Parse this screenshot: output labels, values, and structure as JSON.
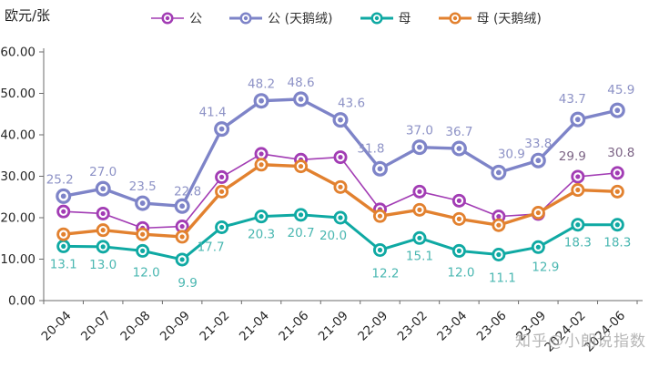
{
  "watermark": {
    "text": "知乎@小朗说指数"
  },
  "chart_data": {
    "type": "line",
    "title": "",
    "xlabel": "",
    "ylabel": "欧元/张",
    "ylim": [
      0,
      60
    ],
    "ytick_labels": [
      "60.00",
      "50.00",
      "40.00",
      "30.00",
      "20.00",
      "10.00",
      "0.00"
    ],
    "grid": false,
    "legend_position": "top",
    "categories": [
      "20-04",
      "20-07",
      "20-08",
      "20-09",
      "21-02",
      "21-04",
      "21-06",
      "21-09",
      "22-09",
      "23-02",
      "23-04",
      "23-06",
      "23-09",
      "2024-02",
      "2024-06"
    ],
    "series": [
      {
        "name": "公",
        "color": "#a23cb4",
        "label_color": "#7c6485",
        "line_width": 1.6,
        "marker_radii": [
          7.5,
          4.7,
          2.6
        ],
        "values": [
          21.5,
          21.0,
          17.5,
          17.9,
          29.8,
          35.4,
          34.0,
          34.6,
          22.0,
          26.3,
          24.1,
          20.3,
          20.9,
          29.9,
          30.8
        ],
        "label_side": "above",
        "labeled_points": [
          13,
          14
        ],
        "label_offsets": {
          "13": [
            -6,
            -4
          ],
          "14": [
            4,
            -4
          ]
        }
      },
      {
        "name": "公 (天鹅绒)",
        "color": "#7e84c8",
        "label_color": "#8d92c6",
        "line_width": 3.4,
        "marker_radii": [
          8.5,
          5.3,
          2.9
        ],
        "values": [
          25.2,
          27.0,
          23.5,
          22.8,
          41.4,
          48.2,
          48.6,
          43.6,
          31.8,
          37.0,
          36.7,
          30.9,
          33.8,
          43.7,
          45.9
        ],
        "label_side": "above",
        "labeled_points": "all",
        "label_offsets": {
          "0": [
            -4,
            0
          ],
          "3": [
            6,
            2
          ],
          "4": [
            -10,
            0
          ],
          "7": [
            12,
            0
          ],
          "8": [
            -10,
            -4
          ],
          "11": [
            14,
            -2
          ],
          "13": [
            -6,
            -4
          ],
          "14": [
            4,
            -4
          ]
        }
      },
      {
        "name": "母",
        "color": "#0fa9a3",
        "label_color": "#4ab7b1",
        "line_width": 3.0,
        "marker_radii": [
          7.5,
          4.7,
          2.6
        ],
        "values": [
          13.1,
          13.0,
          12.0,
          9.9,
          17.7,
          20.3,
          20.7,
          20.0,
          12.2,
          15.1,
          12.0,
          11.1,
          12.9,
          18.3,
          18.3
        ],
        "label_side": "below",
        "labeled_points": "all",
        "label_offsets": {
          "2": [
            4,
            4
          ],
          "3": [
            6,
            6
          ],
          "4": [
            -12,
            2
          ],
          "7": [
            -8,
            0
          ],
          "8": [
            6,
            6
          ],
          "10": [
            2,
            4
          ],
          "11": [
            4,
            6
          ],
          "12": [
            8,
            2
          ]
        }
      },
      {
        "name": "母 (天鹅绒)",
        "color": "#e2812f",
        "label_color": "#b97337",
        "line_width": 3.4,
        "marker_radii": [
          7.5,
          4.7,
          2.6
        ],
        "values": [
          16.0,
          17.0,
          16.0,
          15.4,
          26.3,
          32.8,
          32.4,
          27.4,
          20.4,
          21.9,
          19.7,
          18.2,
          21.2,
          26.7,
          26.3
        ],
        "label_side": "above",
        "labeled_points": [],
        "label_offsets": {}
      }
    ]
  }
}
